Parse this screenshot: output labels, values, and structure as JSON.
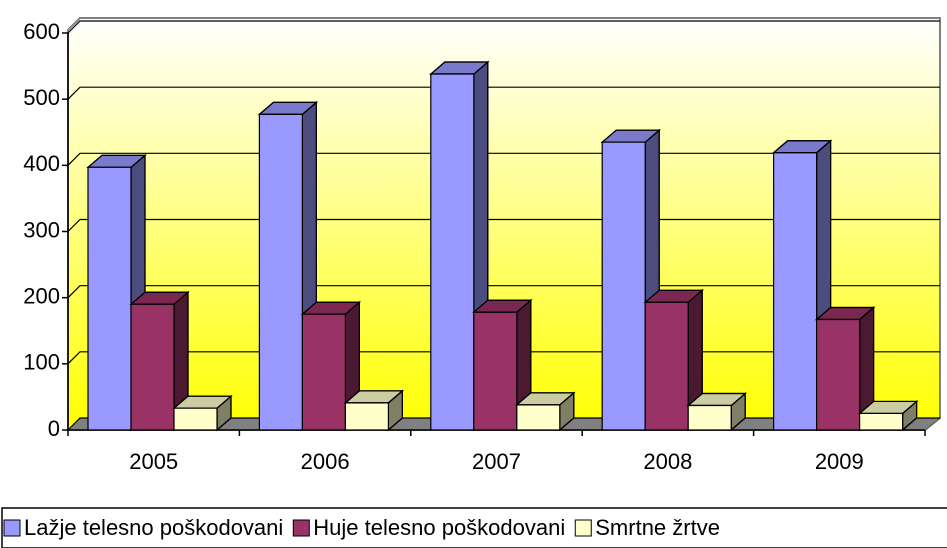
{
  "chart_data": {
    "type": "bar3d",
    "categories": [
      "2005",
      "2006",
      "2007",
      "2008",
      "2009"
    ],
    "series": [
      {
        "name": "Lažje telesno poškodovani",
        "color": "#9999ff",
        "values": [
          397,
          477,
          538,
          435,
          419
        ]
      },
      {
        "name": "Huje telesno poškodovani",
        "color": "#993366",
        "values": [
          190,
          175,
          178,
          193,
          167
        ]
      },
      {
        "name": "Smrtne žrtve",
        "color": "#ffffcc",
        "values": [
          33,
          41,
          38,
          37,
          25
        ]
      }
    ],
    "ylim": [
      0,
      600
    ],
    "yticks": [
      0,
      100,
      200,
      300,
      400,
      500,
      600
    ],
    "grid": true,
    "legend": "bottom"
  }
}
